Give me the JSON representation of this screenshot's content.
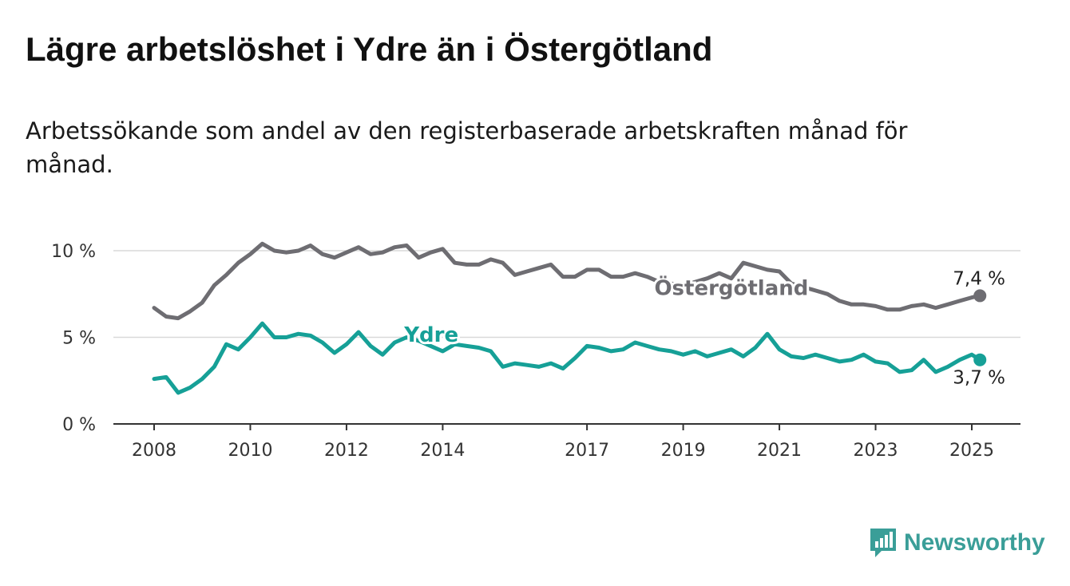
{
  "title": "Lägre arbetslöshet i Ydre än i Östergötland",
  "subtitle": "Arbetssökande som andel av den registerbaserade arbetskraften månad för månad.",
  "brand": {
    "name": "Newsworthy",
    "icon": "newsworthy-logo-icon",
    "color": "#3a9e98"
  },
  "chart_data": {
    "type": "line",
    "ylim": [
      0,
      10
    ],
    "yticks": [
      {
        "value": 0,
        "label": "0 %"
      },
      {
        "value": 5,
        "label": "5 %"
      },
      {
        "value": 10,
        "label": "10 %"
      }
    ],
    "xticks": [
      "2008",
      "2010",
      "2012",
      "2014",
      "2017",
      "2019",
      "2021",
      "2023",
      "2025"
    ],
    "grid": true,
    "series": [
      {
        "name": "Östergötland",
        "color": "#6e6d72",
        "end_label": "7,4 %",
        "x": [
          2008.0,
          2008.25,
          2008.5,
          2008.75,
          2009.0,
          2009.25,
          2009.5,
          2009.75,
          2010.0,
          2010.25,
          2010.5,
          2010.75,
          2011.0,
          2011.25,
          2011.5,
          2011.75,
          2012.0,
          2012.25,
          2012.5,
          2012.75,
          2013.0,
          2013.25,
          2013.5,
          2013.75,
          2014.0,
          2014.25,
          2014.5,
          2014.75,
          2015.0,
          2015.25,
          2015.5,
          2015.75,
          2016.0,
          2016.25,
          2016.5,
          2016.75,
          2017.0,
          2017.25,
          2017.5,
          2017.75,
          2018.0,
          2018.25,
          2018.5,
          2018.75,
          2019.0,
          2019.25,
          2019.5,
          2019.75,
          2020.0,
          2020.25,
          2020.5,
          2020.75,
          2021.0,
          2021.25,
          2021.5,
          2021.75,
          2022.0,
          2022.25,
          2022.5,
          2022.75,
          2023.0,
          2023.25,
          2023.5,
          2023.75,
          2024.0,
          2024.25,
          2024.5,
          2024.75,
          2025.0,
          2025.17
        ],
        "y": [
          6.7,
          6.2,
          6.1,
          6.5,
          7.0,
          8.0,
          8.6,
          9.3,
          9.8,
          10.4,
          10.0,
          9.9,
          10.0,
          10.3,
          9.8,
          9.6,
          9.9,
          10.2,
          9.8,
          9.9,
          10.2,
          10.3,
          9.6,
          9.9,
          10.1,
          9.3,
          9.2,
          9.2,
          9.5,
          9.3,
          8.6,
          8.8,
          9.0,
          9.2,
          8.5,
          8.5,
          8.9,
          8.9,
          8.5,
          8.5,
          8.7,
          8.5,
          8.2,
          8.1,
          8.0,
          8.2,
          8.4,
          8.7,
          8.4,
          9.3,
          9.1,
          8.9,
          8.8,
          8.1,
          7.9,
          7.7,
          7.5,
          7.1,
          6.9,
          6.9,
          6.8,
          6.6,
          6.6,
          6.8,
          6.9,
          6.7,
          6.9,
          7.1,
          7.3,
          7.4
        ]
      },
      {
        "name": "Ydre",
        "color": "#16a097",
        "end_label": "3,7 %",
        "x": [
          2008.0,
          2008.25,
          2008.5,
          2008.75,
          2009.0,
          2009.25,
          2009.5,
          2009.75,
          2010.0,
          2010.25,
          2010.5,
          2010.75,
          2011.0,
          2011.25,
          2011.5,
          2011.75,
          2012.0,
          2012.25,
          2012.5,
          2012.75,
          2013.0,
          2013.25,
          2013.5,
          2013.75,
          2014.0,
          2014.25,
          2014.5,
          2014.75,
          2015.0,
          2015.25,
          2015.5,
          2015.75,
          2016.0,
          2016.25,
          2016.5,
          2016.75,
          2017.0,
          2017.25,
          2017.5,
          2017.75,
          2018.0,
          2018.25,
          2018.5,
          2018.75,
          2019.0,
          2019.25,
          2019.5,
          2019.75,
          2020.0,
          2020.25,
          2020.5,
          2020.75,
          2021.0,
          2021.25,
          2021.5,
          2021.75,
          2022.0,
          2022.25,
          2022.5,
          2022.75,
          2023.0,
          2023.25,
          2023.5,
          2023.75,
          2024.0,
          2024.25,
          2024.5,
          2024.75,
          2025.0,
          2025.17
        ],
        "y": [
          2.6,
          2.7,
          1.8,
          2.1,
          2.6,
          3.3,
          4.6,
          4.3,
          5.0,
          5.8,
          5.0,
          5.0,
          5.2,
          5.1,
          4.7,
          4.1,
          4.6,
          5.3,
          4.5,
          4.0,
          4.7,
          5.0,
          4.8,
          4.5,
          4.2,
          4.6,
          4.5,
          4.4,
          4.2,
          3.3,
          3.5,
          3.4,
          3.3,
          3.5,
          3.2,
          3.8,
          4.5,
          4.4,
          4.2,
          4.3,
          4.7,
          4.5,
          4.3,
          4.2,
          4.0,
          4.2,
          3.9,
          4.1,
          4.3,
          3.9,
          4.4,
          5.2,
          4.3,
          3.9,
          3.8,
          4.0,
          3.8,
          3.6,
          3.7,
          4.0,
          3.6,
          3.5,
          3.0,
          3.1,
          3.7,
          3.0,
          3.3,
          3.7,
          4.0,
          3.7
        ]
      }
    ]
  }
}
